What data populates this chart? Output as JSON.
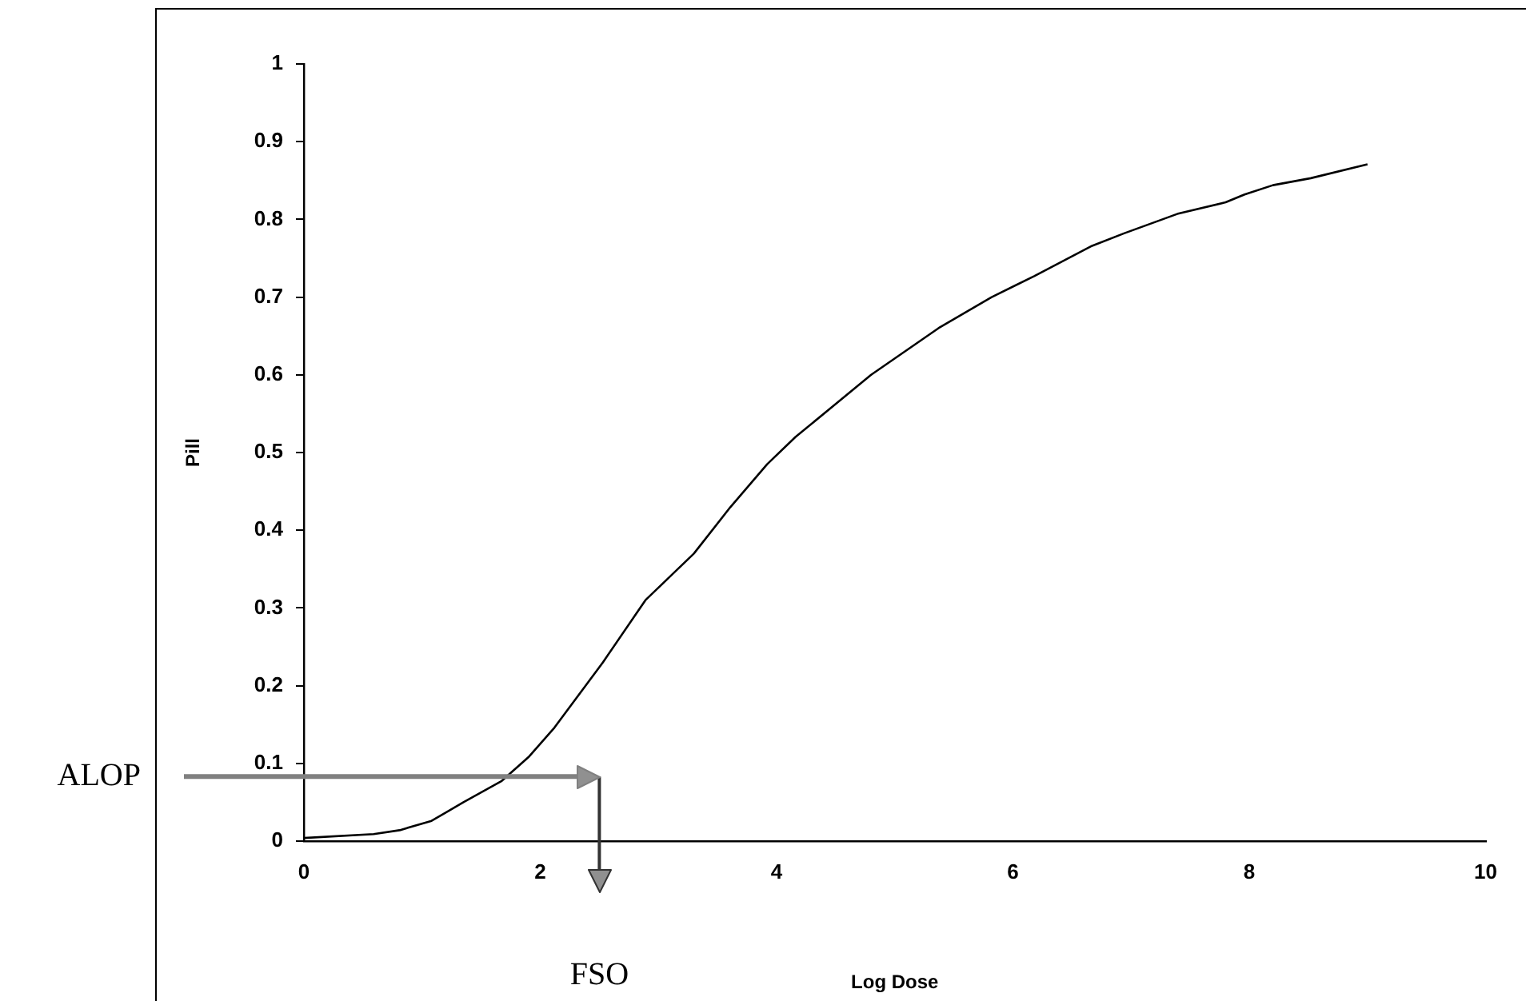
{
  "chart_data": {
    "type": "line",
    "xlabel": "Log Dose",
    "ylabel": "Pill",
    "x": [
      0,
      0.59,
      0.81,
      1.08,
      1.35,
      1.67,
      1.9,
      2.12,
      2.53,
      2.89,
      3.3,
      3.61,
      3.92,
      4.16,
      4.8,
      5.37,
      5.82,
      6.18,
      6.67,
      6.94,
      7.39,
      7.8,
      7.96,
      8.2,
      8.52,
      9.0
    ],
    "series": [
      {
        "color": "#000000",
        "values": [
          0.004,
          0.009,
          0.014,
          0.026,
          0.05,
          0.077,
          0.108,
          0.146,
          0.23,
          0.31,
          0.37,
          0.43,
          0.485,
          0.52,
          0.6,
          0.66,
          0.7,
          0.727,
          0.766,
          0.782,
          0.807,
          0.822,
          0.832,
          0.844,
          0.853,
          0.871
        ]
      }
    ],
    "xlim": [
      0,
      10
    ],
    "ylim": [
      0,
      1
    ],
    "xticks": [
      0,
      2,
      4,
      6,
      8,
      10
    ],
    "yticks": [
      0,
      0.1,
      0.2,
      0.3,
      0.4,
      0.5,
      0.6,
      0.7,
      0.8,
      0.9,
      1
    ],
    "marker": "none",
    "line_style": "solid",
    "ref_lines": [
      {
        "axis": "y",
        "value": 0.083,
        "label": "ALOP",
        "color": "#808080"
      },
      {
        "axis": "x",
        "value": 2.5,
        "label": "FSO",
        "color": "#333333"
      }
    ]
  }
}
